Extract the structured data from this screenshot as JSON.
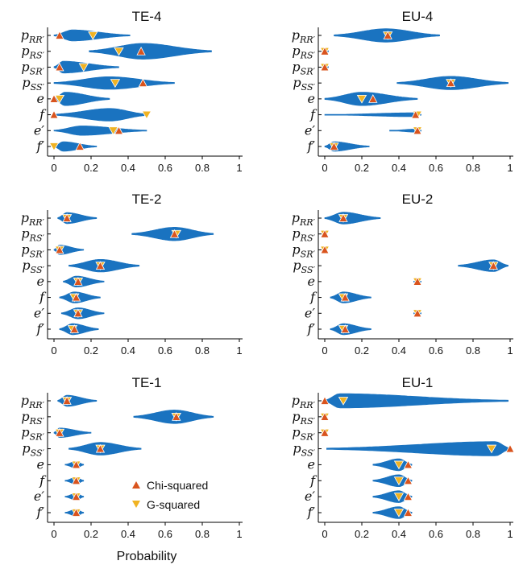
{
  "colors": {
    "violin": "#1a73c0",
    "chi": "#d9541e",
    "g": "#f0b323"
  },
  "chart_data": {
    "type": "violin",
    "xlabel": "Probability",
    "xlim": [
      0,
      1
    ],
    "x_ticks": [
      "0",
      "0.2",
      "0.4",
      "0.6",
      "0.8",
      "1"
    ],
    "legend": {
      "entries": [
        "Chi-squared",
        "G-squared"
      ],
      "placement": "lower-right of TE-1 panel"
    },
    "rows": [
      {
        "base": "p",
        "sub": "RR′"
      },
      {
        "base": "p",
        "sub": "RS′"
      },
      {
        "base": "p",
        "sub": "SR′"
      },
      {
        "base": "p",
        "sub": "SS′"
      },
      {
        "base": "e",
        "sub": ""
      },
      {
        "base": "f",
        "sub": ""
      },
      {
        "base": "e′",
        "sub": ""
      },
      {
        "base": "f′",
        "sub": ""
      }
    ],
    "panels": [
      {
        "title": "TE-4",
        "series": [
          {
            "range": [
              0.0,
              0.41
            ],
            "center": 0.1,
            "width": 0.7,
            "chi": 0.03,
            "g": 0.21
          },
          {
            "range": [
              0.19,
              0.85
            ],
            "center": 0.48,
            "width": 1.0,
            "chi": 0.47,
            "g": 0.35
          },
          {
            "range": [
              0.0,
              0.35
            ],
            "center": 0.05,
            "width": 0.75,
            "chi": 0.03,
            "g": 0.16
          },
          {
            "range": [
              0.0,
              0.65
            ],
            "center": 0.3,
            "width": 0.8,
            "chi": 0.48,
            "g": 0.33
          },
          {
            "range": [
              0.0,
              0.3
            ],
            "center": 0.06,
            "width": 0.85,
            "chi": 0.0,
            "g": 0.03
          },
          {
            "range": [
              0.0,
              0.51
            ],
            "center": 0.3,
            "width": 0.8,
            "chi": 0.0,
            "g": 0.5
          },
          {
            "range": [
              0.0,
              0.5
            ],
            "center": 0.15,
            "width": 0.6,
            "chi": 0.35,
            "g": 0.32
          },
          {
            "range": [
              0.0,
              0.23
            ],
            "center": 0.05,
            "width": 0.6,
            "chi": 0.14,
            "g": 0.0
          }
        ]
      },
      {
        "title": "EU-4",
        "series": [
          {
            "range": [
              0.05,
              0.62
            ],
            "center": 0.33,
            "width": 0.85,
            "chi": 0.34,
            "g": 0.34
          },
          {
            "range": [
              0.0,
              0.02
            ],
            "center": 0.0,
            "width": 0.1,
            "chi": 0.0,
            "g": 0.0
          },
          {
            "range": [
              0.0,
              0.02
            ],
            "center": 0.0,
            "width": 0.1,
            "chi": 0.0,
            "g": 0.0
          },
          {
            "range": [
              0.39,
              0.99
            ],
            "center": 0.68,
            "width": 0.85,
            "chi": 0.68,
            "g": 0.68
          },
          {
            "range": [
              0.0,
              0.5
            ],
            "center": 0.2,
            "width": 0.85,
            "chi": 0.26,
            "g": 0.2
          },
          {
            "range": [
              0.0,
              0.52
            ],
            "center": 0.48,
            "width": 0.25,
            "chi": 0.49,
            "g": 0.5
          },
          {
            "range": [
              0.35,
              0.52
            ],
            "center": 0.49,
            "width": 0.2,
            "chi": 0.5,
            "g": 0.5
          },
          {
            "range": [
              0.0,
              0.24
            ],
            "center": 0.05,
            "width": 0.6,
            "chi": 0.05,
            "g": 0.05
          }
        ]
      },
      {
        "title": "TE-2",
        "series": [
          {
            "range": [
              0.02,
              0.23
            ],
            "center": 0.07,
            "width": 0.7,
            "chi": 0.07,
            "g": 0.07
          },
          {
            "range": [
              0.42,
              0.86
            ],
            "center": 0.65,
            "width": 0.85,
            "chi": 0.65,
            "g": 0.66
          },
          {
            "range": [
              0.0,
              0.16
            ],
            "center": 0.03,
            "width": 0.6,
            "chi": 0.03,
            "g": 0.03
          },
          {
            "range": [
              0.08,
              0.46
            ],
            "center": 0.25,
            "width": 0.8,
            "chi": 0.25,
            "g": 0.25
          },
          {
            "range": [
              0.05,
              0.27
            ],
            "center": 0.12,
            "width": 0.7,
            "chi": 0.13,
            "g": 0.13
          },
          {
            "range": [
              0.03,
              0.25
            ],
            "center": 0.11,
            "width": 0.7,
            "chi": 0.12,
            "g": 0.11
          },
          {
            "range": [
              0.04,
              0.27
            ],
            "center": 0.13,
            "width": 0.7,
            "chi": 0.13,
            "g": 0.13
          },
          {
            "range": [
              0.03,
              0.24
            ],
            "center": 0.1,
            "width": 0.7,
            "chi": 0.11,
            "g": 0.1
          }
        ]
      },
      {
        "title": "EU-2",
        "series": [
          {
            "range": [
              0.0,
              0.3
            ],
            "center": 0.1,
            "width": 0.75,
            "chi": 0.1,
            "g": 0.1
          },
          {
            "range": [
              0.0,
              0.01
            ],
            "center": 0.0,
            "width": 0.1,
            "chi": 0.0,
            "g": 0.0
          },
          {
            "range": [
              0.0,
              0.01
            ],
            "center": 0.0,
            "width": 0.1,
            "chi": 0.0,
            "g": 0.0
          },
          {
            "range": [
              0.72,
              0.99
            ],
            "center": 0.91,
            "width": 0.75,
            "chi": 0.91,
            "g": 0.91
          },
          {
            "range": [
              0.48,
              0.52
            ],
            "center": 0.5,
            "width": 0.15,
            "chi": 0.5,
            "g": 0.5
          },
          {
            "range": [
              0.03,
              0.25
            ],
            "center": 0.1,
            "width": 0.7,
            "chi": 0.11,
            "g": 0.1
          },
          {
            "range": [
              0.48,
              0.52
            ],
            "center": 0.5,
            "width": 0.15,
            "chi": 0.5,
            "g": 0.5
          },
          {
            "range": [
              0.03,
              0.25
            ],
            "center": 0.1,
            "width": 0.7,
            "chi": 0.11,
            "g": 0.1
          }
        ]
      },
      {
        "title": "TE-1",
        "series": [
          {
            "range": [
              0.02,
              0.23
            ],
            "center": 0.07,
            "width": 0.7,
            "chi": 0.07,
            "g": 0.07
          },
          {
            "range": [
              0.43,
              0.86
            ],
            "center": 0.65,
            "width": 0.85,
            "chi": 0.66,
            "g": 0.66
          },
          {
            "range": [
              0.0,
              0.2
            ],
            "center": 0.03,
            "width": 0.6,
            "chi": 0.03,
            "g": 0.03
          },
          {
            "range": [
              0.08,
              0.47
            ],
            "center": 0.25,
            "width": 0.8,
            "chi": 0.25,
            "g": 0.25
          },
          {
            "range": [
              0.06,
              0.16
            ],
            "center": 0.12,
            "width": 0.45,
            "chi": 0.12,
            "g": 0.12
          },
          {
            "range": [
              0.06,
              0.16
            ],
            "center": 0.12,
            "width": 0.45,
            "chi": 0.12,
            "g": 0.12
          },
          {
            "range": [
              0.06,
              0.16
            ],
            "center": 0.12,
            "width": 0.45,
            "chi": 0.12,
            "g": 0.12
          },
          {
            "range": [
              0.06,
              0.16
            ],
            "center": 0.12,
            "width": 0.45,
            "chi": 0.12,
            "g": 0.12
          }
        ]
      },
      {
        "title": "EU-1",
        "series": [
          {
            "range": [
              0.0,
              0.99
            ],
            "center": 0.08,
            "width": 0.9,
            "chi": 0.0,
            "g": 0.1
          },
          {
            "range": [
              0.0,
              0.01
            ],
            "center": 0.0,
            "width": 0.1,
            "chi": 0.0,
            "g": 0.0
          },
          {
            "range": [
              0.0,
              0.01
            ],
            "center": 0.0,
            "width": 0.1,
            "chi": 0.0,
            "g": 0.0
          },
          {
            "range": [
              0.01,
              1.0
            ],
            "center": 0.92,
            "width": 0.9,
            "chi": 1.0,
            "g": 0.9
          },
          {
            "range": [
              0.26,
              0.47
            ],
            "center": 0.4,
            "width": 0.75,
            "chi": 0.45,
            "g": 0.4
          },
          {
            "range": [
              0.26,
              0.47
            ],
            "center": 0.4,
            "width": 0.75,
            "chi": 0.45,
            "g": 0.4
          },
          {
            "range": [
              0.26,
              0.47
            ],
            "center": 0.4,
            "width": 0.75,
            "chi": 0.45,
            "g": 0.4
          },
          {
            "range": [
              0.26,
              0.47
            ],
            "center": 0.4,
            "width": 0.75,
            "chi": 0.45,
            "g": 0.4
          }
        ]
      }
    ]
  }
}
